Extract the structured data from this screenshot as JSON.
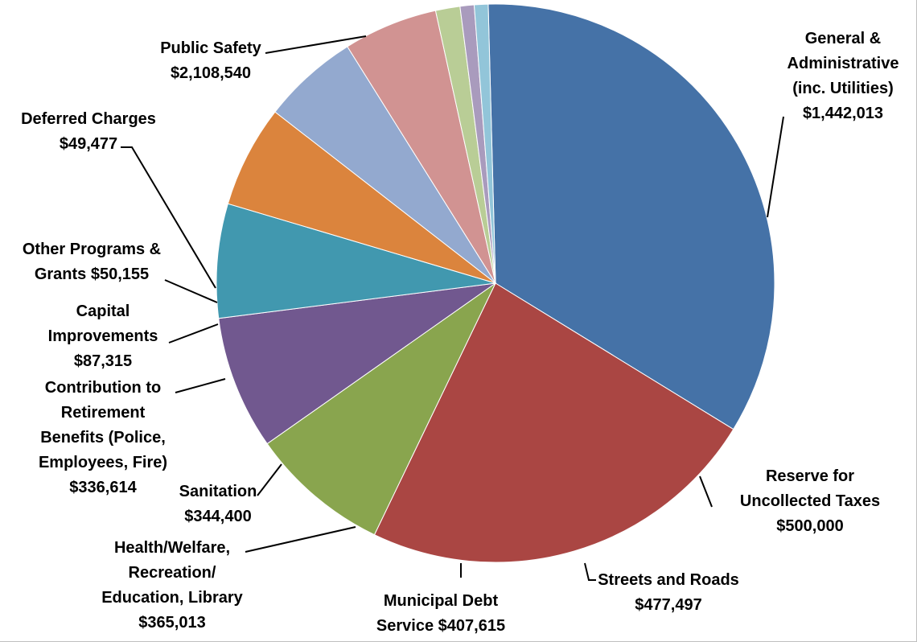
{
  "chart_data": {
    "type": "pie",
    "title": "",
    "legend": "none",
    "slices": [
      {
        "name": "Public Safety",
        "value": 2108540,
        "color": "#4572A7",
        "label_lines": [
          "Public Safety",
          "$2,108,540"
        ]
      },
      {
        "name": "General & Administrative (inc. Utilities)",
        "value": 1442013,
        "color": "#AA4643",
        "label_lines": [
          "General &",
          "Administrative",
          "(inc. Utilities)",
          "$1,442,013"
        ]
      },
      {
        "name": "Reserve for Uncollected Taxes",
        "value": 500000,
        "color": "#89A54E",
        "label_lines": [
          "Reserve for",
          "Uncollected Taxes",
          "$500,000"
        ]
      },
      {
        "name": "Streets and Roads",
        "value": 477497,
        "color": "#71588F",
        "label_lines": [
          "Streets and Roads",
          "$477,497"
        ]
      },
      {
        "name": "Municipal Debt Service",
        "value": 407615,
        "color": "#4198AF",
        "label_lines": [
          "Municipal Debt",
          "Service $407,615"
        ]
      },
      {
        "name": "Health/Welfare, Recreation/ Education, Library",
        "value": 365013,
        "color": "#DB843D",
        "label_lines": [
          "Health/Welfare,",
          "Recreation/",
          "Education, Library",
          "$365,013"
        ]
      },
      {
        "name": "Sanitation",
        "value": 344400,
        "color": "#93A9CF",
        "label_lines": [
          "Sanitation",
          "$344,400"
        ]
      },
      {
        "name": "Contribution to Retirement Benefits (Police, Employees, Fire)",
        "value": 336614,
        "color": "#D19392",
        "label_lines": [
          "Contribution to",
          "Retirement",
          "Benefits (Police,",
          "Employees, Fire)",
          "$336,614"
        ]
      },
      {
        "name": "Capital Improvements",
        "value": 87315,
        "color": "#B9CD96",
        "label_lines": [
          "Capital",
          "Improvements",
          "$87,315"
        ]
      },
      {
        "name": "Other Programs & Grants",
        "value": 50155,
        "color": "#A99BBD",
        "label_lines": [
          "Other Programs &",
          "Grants $50,155"
        ]
      },
      {
        "name": "Deferred Charges",
        "value": 49477,
        "color": "#92C5D9",
        "label_lines": [
          "Deferred Charges",
          "$49,477"
        ]
      }
    ]
  }
}
